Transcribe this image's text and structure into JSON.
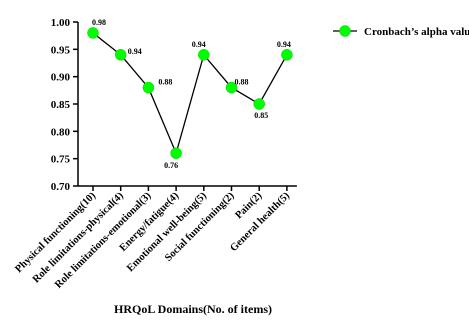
{
  "chart_data": {
    "type": "line",
    "categories": [
      "Physical functioning(10)",
      "Role limitations-physical(4)",
      "Role limitations-emotional(3)",
      "Energy/fatigue(4)",
      "Emotional well-being(5)",
      "Social functioning(2)",
      "Pain(2)",
      "General health(5)"
    ],
    "series": [
      {
        "name": "Cronbach’s alpha value",
        "values": [
          0.98,
          0.94,
          0.88,
          0.76,
          0.94,
          0.88,
          0.85,
          0.94
        ],
        "color": "#00ff00",
        "line_color": "#000000"
      }
    ],
    "data_labels": [
      "0.98",
      "0.94",
      "0.88",
      "0.76",
      "0.94",
      "0.88",
      "0.85",
      "0.94"
    ],
    "xlabel": "HRQoL Domains(No. of items)",
    "ylabel": "",
    "ylim": [
      0.7,
      1.0
    ],
    "yticks": [
      "0.70",
      "0.75",
      "0.80",
      "0.85",
      "0.90",
      "0.95",
      "1.00"
    ],
    "grid": false,
    "legend_position": "top-right"
  }
}
